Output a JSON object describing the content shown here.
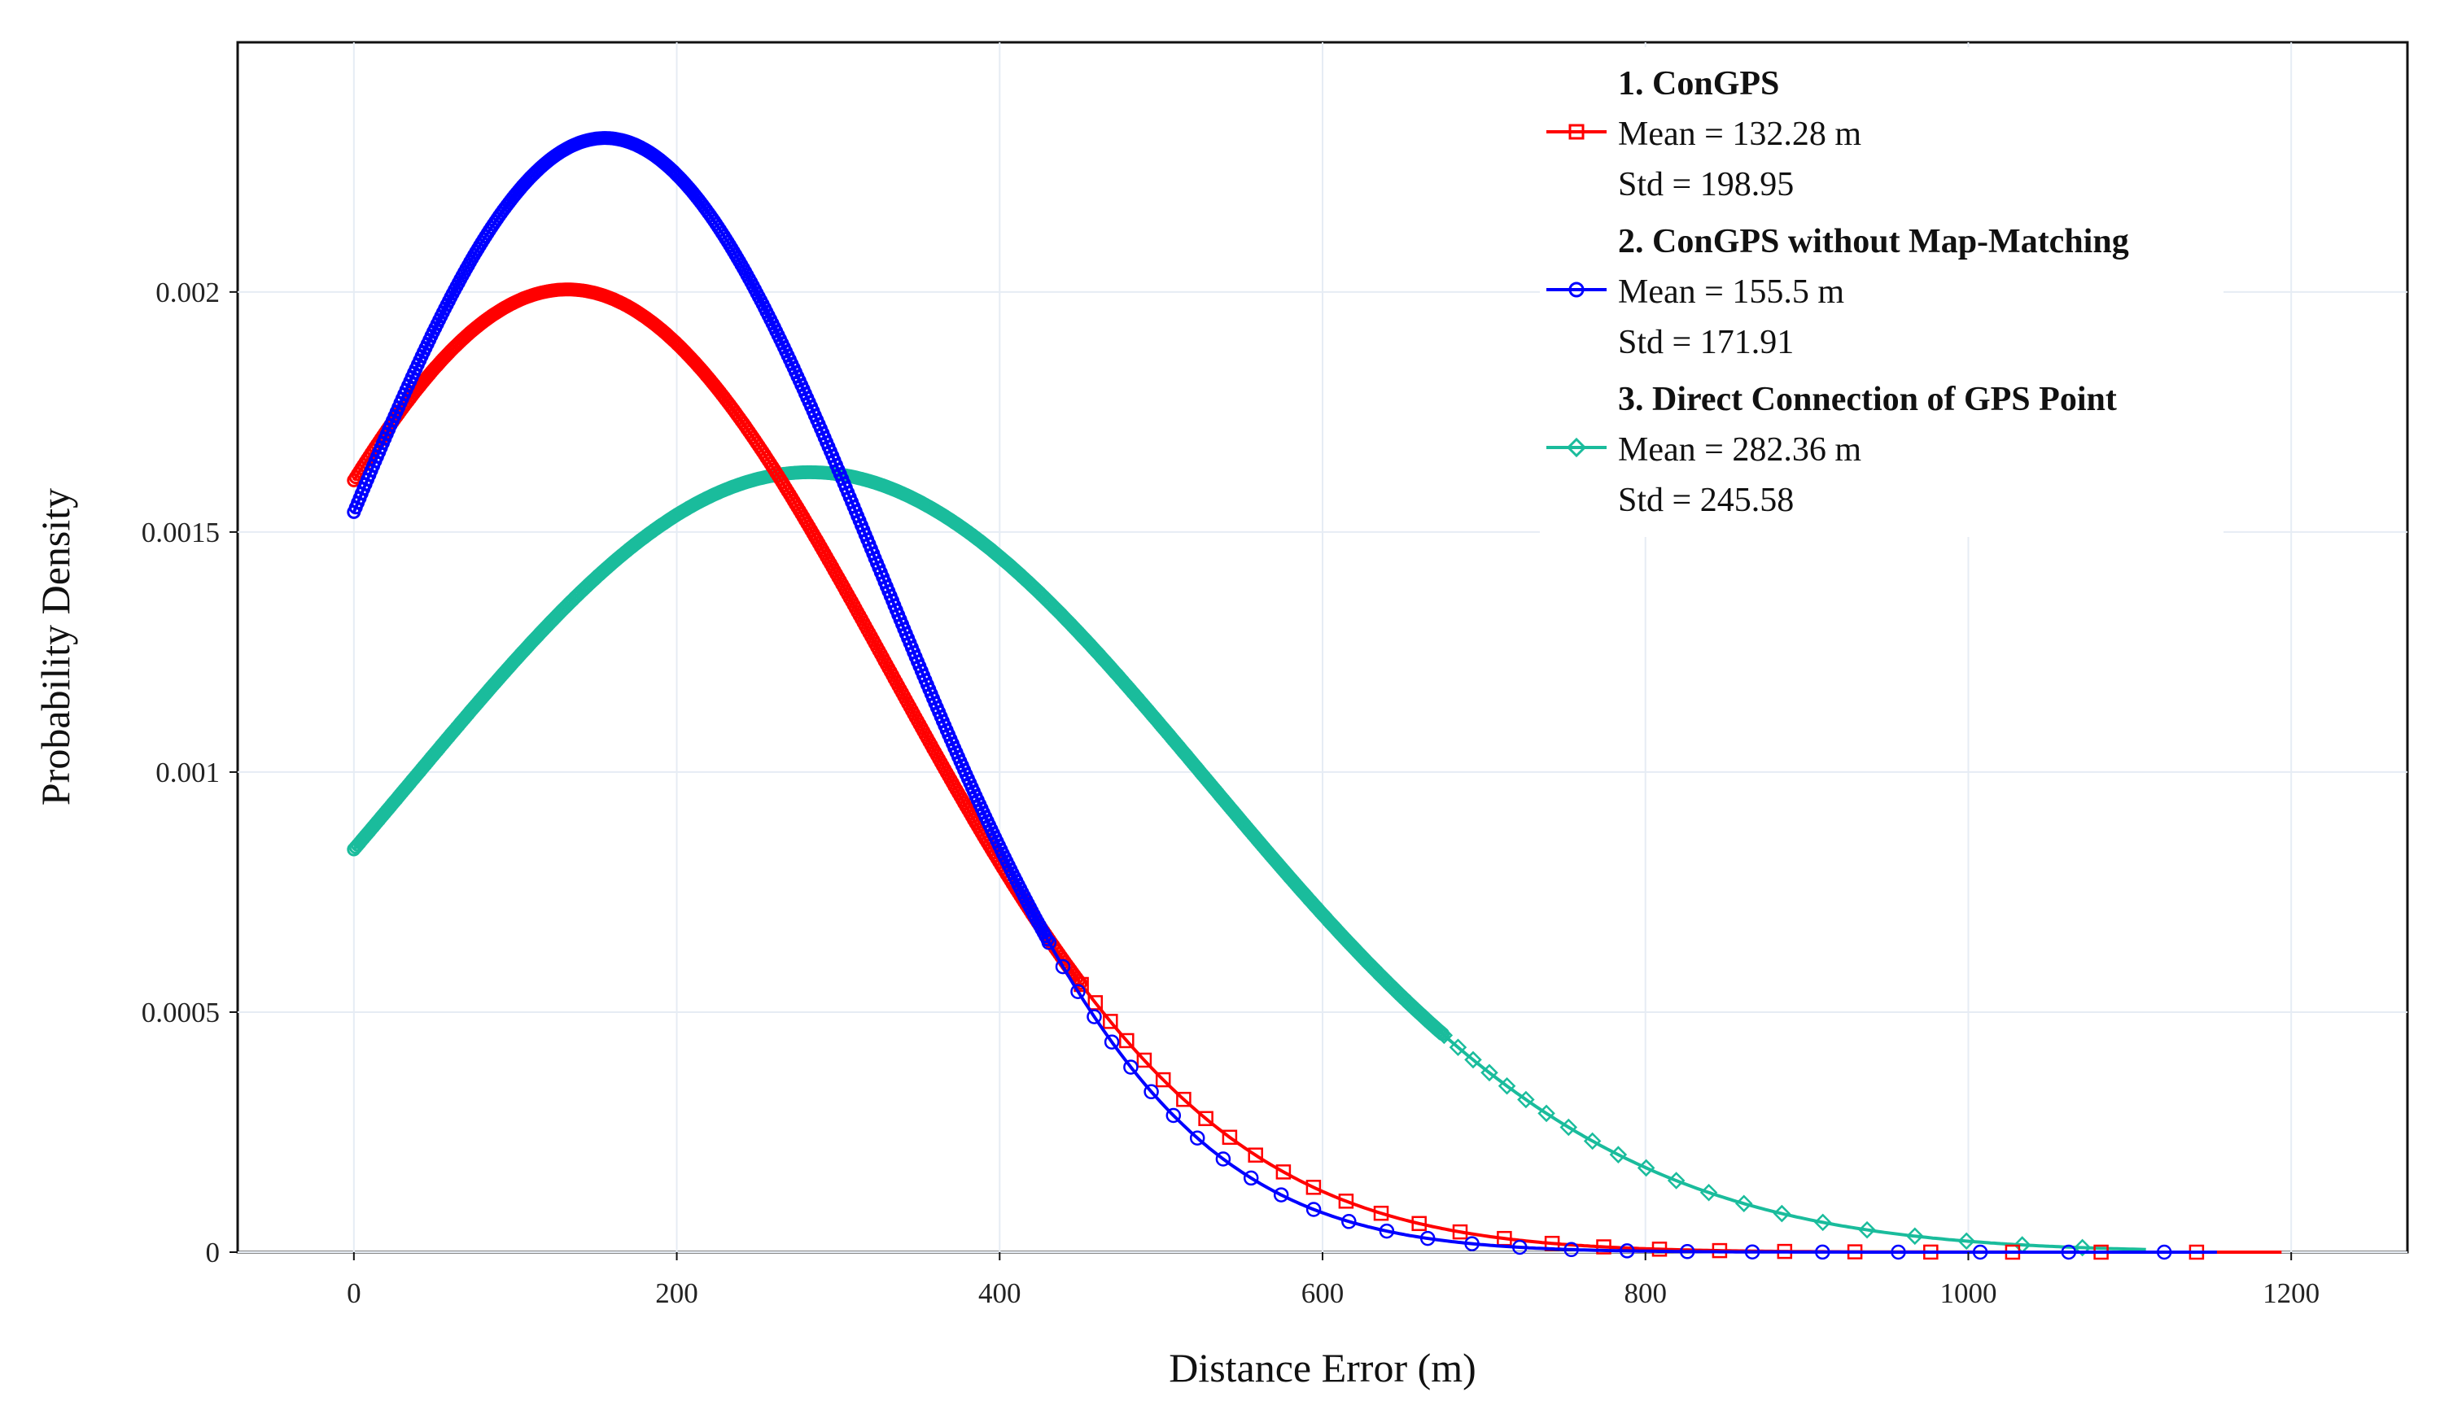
{
  "chart_data": {
    "type": "line",
    "title": "",
    "xlabel": "Distance Error (m)",
    "ylabel": "Probability Density",
    "xlim": [
      -72,
      1272
    ],
    "ylim": [
      0,
      0.00252
    ],
    "x_ticks": [
      0,
      200,
      400,
      600,
      800,
      1000,
      1200
    ],
    "x_tick_labels": [
      "0",
      "200",
      "400",
      "600",
      "800",
      "1000",
      "1200"
    ],
    "y_ticks": [
      0,
      0.0005,
      0.001,
      0.0015,
      0.002
    ],
    "y_tick_labels": [
      "0",
      "0.0005",
      "0.001",
      "0.0015",
      "0.002"
    ],
    "grid": true,
    "legend_position": "top-right",
    "series": [
      {
        "name": "1. ConGPS",
        "mean_label": "Mean = 132.28 m",
        "std_label": "Std = 198.95",
        "mean": 132.28,
        "std": 198.95,
        "color": "#ff0000",
        "marker": "square",
        "x_range": [
          0,
          1195
        ]
      },
      {
        "name": "2. ConGPS without Map-Matching",
        "mean_label": "Mean = 155.5 m",
        "std_label": "Std = 171.91",
        "mean": 155.5,
        "std": 171.91,
        "color": "#0000ff",
        "marker": "circle",
        "x_range": [
          0,
          1155
        ]
      },
      {
        "name": "3. Direct Connection of GPS Point",
        "mean_label": "Mean = 282.36 m",
        "std_label": "Std = 245.58",
        "mean": 282.36,
        "std": 245.58,
        "color": "#1abc9c",
        "marker": "diamond",
        "x_range": [
          0,
          1110
        ]
      }
    ]
  }
}
